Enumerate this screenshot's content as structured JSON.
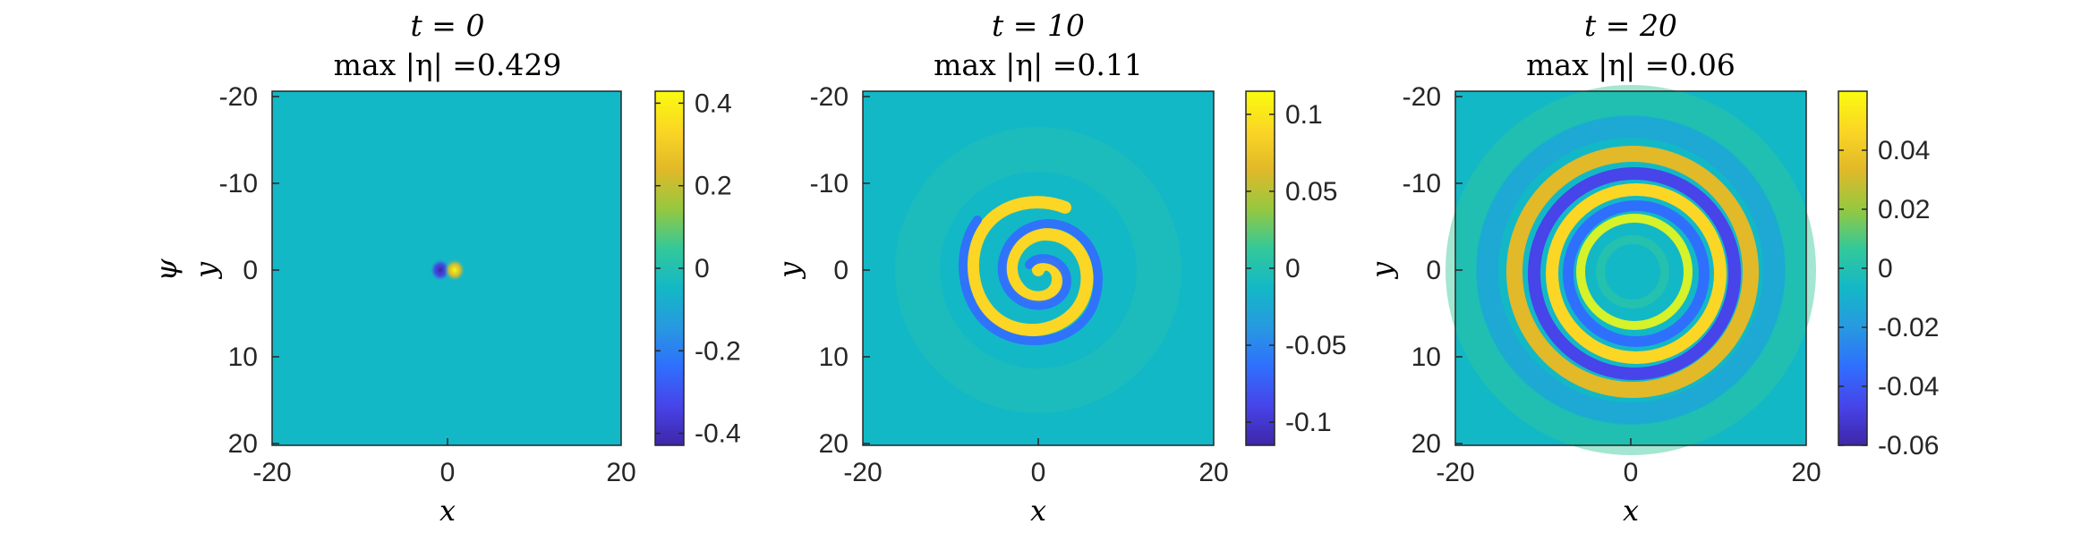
{
  "chart_data": [
    {
      "type": "heatmap",
      "title_line1": "t = 0",
      "title_line2": "max |η| =0.429",
      "xlabel": "x",
      "ylabel": "y",
      "extra_ylabel": "ψ",
      "xlim": [
        -20,
        20
      ],
      "ylim": [
        -20,
        20
      ],
      "xticks": [
        "-20",
        "0",
        "20"
      ],
      "yticks": [
        "-20",
        "-10",
        "0",
        "10",
        "20"
      ],
      "colorbar": {
        "min": -0.429,
        "max": 0.429,
        "ticks": [
          "0.4",
          "0.2",
          "0",
          "-0.2",
          "-0.4"
        ],
        "tick_values": [
          0.4,
          0.2,
          0,
          -0.2,
          -0.4
        ]
      },
      "pattern": "dipole",
      "max_abs_eta": 0.429
    },
    {
      "type": "heatmap",
      "title_line1": "t = 10",
      "title_line2": "max |η| =0.11",
      "xlabel": "x",
      "ylabel": "y",
      "xlim": [
        -20,
        20
      ],
      "ylim": [
        -20,
        20
      ],
      "xticks": [
        "-20",
        "0",
        "20"
      ],
      "yticks": [
        "-20",
        "-10",
        "0",
        "10",
        "20"
      ],
      "colorbar": {
        "min": -0.115,
        "max": 0.115,
        "ticks": [
          "0.1",
          "0.05",
          "0",
          "-0.05",
          "-0.1"
        ],
        "tick_values": [
          0.1,
          0.05,
          0,
          -0.05,
          -0.1
        ]
      },
      "pattern": "spiral",
      "max_abs_eta": 0.11
    },
    {
      "type": "heatmap",
      "title_line1": "t = 20",
      "title_line2": "max |η| =0.06",
      "xlabel": "x",
      "ylabel": "y",
      "xlim": [
        -20,
        20
      ],
      "ylim": [
        -20,
        20
      ],
      "xticks": [
        "-20",
        "0",
        "20"
      ],
      "yticks": [
        "-20",
        "-10",
        "0",
        "10",
        "20"
      ],
      "colorbar": {
        "min": -0.06,
        "max": 0.06,
        "ticks": [
          "0.04",
          "0.02",
          "0",
          "-0.02",
          "-0.04",
          "-0.06"
        ],
        "tick_values": [
          0.04,
          0.02,
          0,
          -0.02,
          -0.04,
          -0.06
        ]
      },
      "pattern": "rings",
      "max_abs_eta": 0.06
    }
  ],
  "colormap": [
    "#3e26a8",
    "#4744e9",
    "#2f6ffd",
    "#2799e0",
    "#13b8c6",
    "#33c89a",
    "#95c840",
    "#e1b929",
    "#fbd625",
    "#f9fb0e"
  ]
}
